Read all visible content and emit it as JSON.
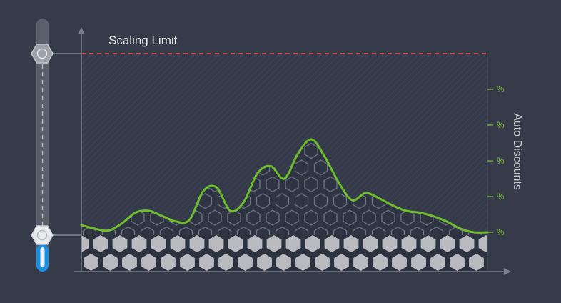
{
  "header": {
    "title": "Scaling Limit"
  },
  "chart_data": {
    "type": "area",
    "ylabel": "Auto Discounts",
    "yticks": [
      "%",
      "%",
      "%",
      "%",
      "%"
    ],
    "ylim": [
      0,
      5
    ],
    "x": [
      0,
      1,
      2,
      3,
      4,
      5,
      6,
      7,
      8,
      9,
      10,
      11,
      12,
      13,
      14,
      15,
      16,
      17,
      18,
      19,
      20,
      21,
      22,
      23,
      24,
      25,
      26,
      27,
      28,
      29,
      30
    ],
    "values": [
      0.2,
      0.1,
      0.05,
      0.25,
      0.55,
      0.6,
      0.45,
      0.3,
      0.35,
      1.15,
      1.25,
      0.6,
      0.85,
      1.65,
      1.85,
      1.5,
      2.2,
      2.6,
      2.1,
      1.4,
      0.9,
      1.1,
      0.95,
      0.75,
      0.6,
      0.55,
      0.45,
      0.3,
      0.1,
      0.0,
      0.0
    ],
    "scaling_limit": 5,
    "series_color": "#6fbe2a",
    "limit_color": "#ff4b5c"
  },
  "slider": {
    "upper_level": 1.0,
    "lower_level": 0.0,
    "fill_color": "#1a8fe3"
  }
}
